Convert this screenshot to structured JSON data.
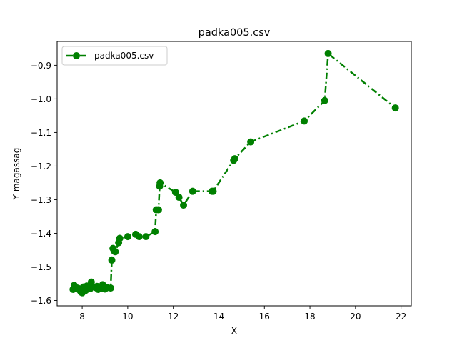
{
  "chart_data": {
    "type": "line",
    "title": "padka005.csv",
    "xlabel": "X",
    "ylabel": "Y magassag",
    "xlim": [
      6.9,
      22.45
    ],
    "ylim": [
      -1.616,
      -0.829
    ],
    "xticks": [
      8,
      10,
      12,
      14,
      16,
      18,
      20,
      22
    ],
    "yticks": [
      -1.6,
      -1.5,
      -1.4,
      -1.3,
      -1.2,
      -1.1,
      -1.0,
      -0.9
    ],
    "ytick_labels": [
      "−1.6",
      "−1.5",
      "−1.4",
      "−1.3",
      "−1.2",
      "−1.1",
      "−1.0",
      "−0.9"
    ],
    "xtick_labels": [
      "8",
      "10",
      "12",
      "14",
      "16",
      "18",
      "20",
      "22"
    ],
    "grid": false,
    "legend": "top-left",
    "series": [
      {
        "name": "padka005.csv",
        "color": "#008000",
        "linestyle": "dashdot",
        "marker": "circle",
        "x": [
          7.6,
          7.65,
          7.7,
          7.8,
          7.9,
          7.95,
          8.0,
          8.05,
          8.1,
          8.15,
          8.2,
          8.3,
          8.35,
          8.4,
          8.45,
          8.6,
          8.65,
          8.7,
          8.8,
          8.9,
          8.95,
          9.0,
          9.1,
          9.25,
          9.3,
          9.35,
          9.4,
          9.45,
          9.6,
          9.65,
          10.0,
          10.35,
          10.5,
          10.8,
          11.2,
          11.25,
          11.35,
          11.4,
          11.42,
          12.1,
          12.25,
          12.45,
          12.85,
          13.7,
          13.75,
          14.65,
          14.7,
          15.4,
          17.75,
          18.65,
          18.8,
          21.75
        ],
        "y": [
          -1.567,
          -1.555,
          -1.565,
          -1.563,
          -1.57,
          -1.575,
          -1.577,
          -1.56,
          -1.565,
          -1.57,
          -1.557,
          -1.56,
          -1.565,
          -1.545,
          -1.558,
          -1.562,
          -1.558,
          -1.567,
          -1.565,
          -1.553,
          -1.565,
          -1.566,
          -1.562,
          -1.563,
          -1.48,
          -1.445,
          -1.452,
          -1.455,
          -1.428,
          -1.415,
          -1.41,
          -1.403,
          -1.41,
          -1.41,
          -1.395,
          -1.33,
          -1.33,
          -1.26,
          -1.25,
          -1.278,
          -1.293,
          -1.316,
          -1.275,
          -1.275,
          -1.275,
          -1.183,
          -1.178,
          -1.128,
          -1.066,
          -1.005,
          -0.865,
          -1.027
        ]
      }
    ]
  }
}
